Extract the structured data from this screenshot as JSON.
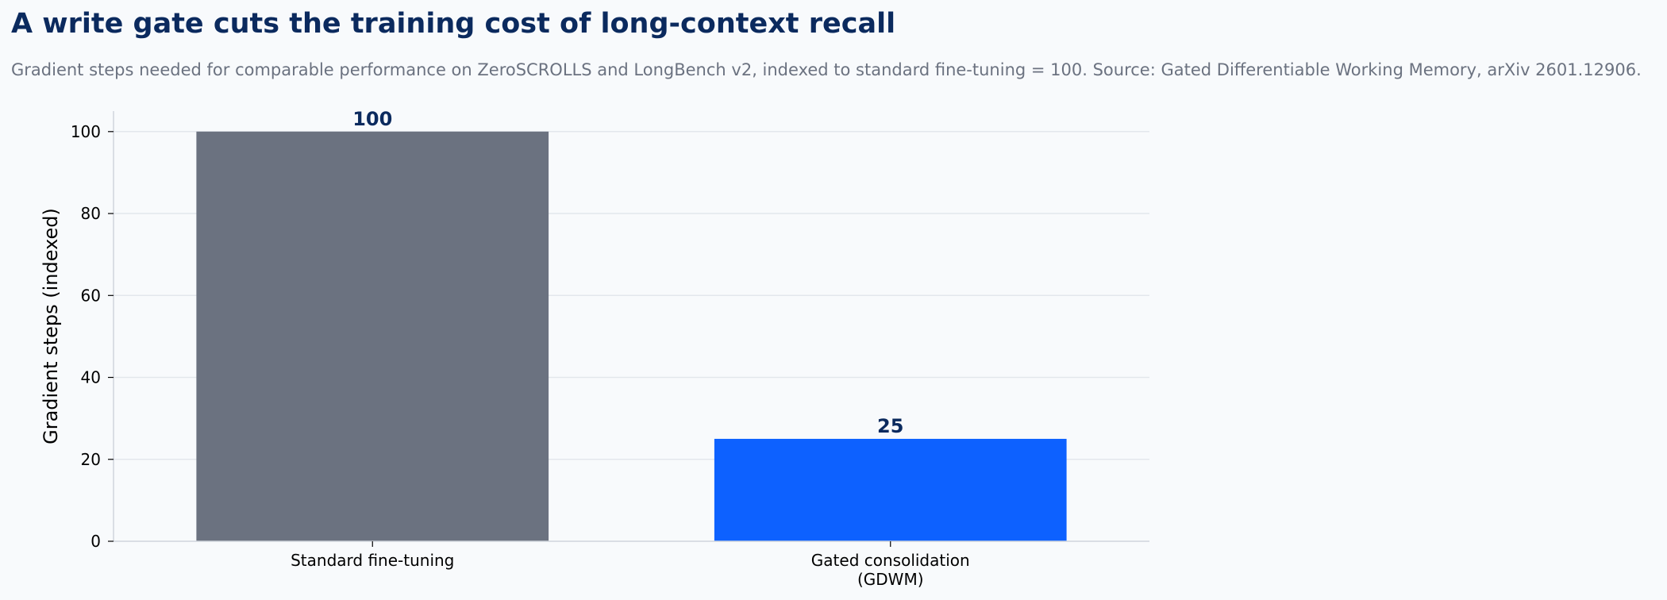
{
  "title": "A write gate cuts the training cost of long-context recall",
  "subtitle": "Gradient steps needed for comparable performance on ZeroSCROLLS and LongBench v2, indexed to standard fine-tuning = 100. Source: Gated Differentiable Working Memory, arXiv 2601.12906.",
  "colors": {
    "background": "#f8fafc",
    "title": "#0b2a5e",
    "subtitle": "#6b7280",
    "baseline_bar": "#6b7280",
    "highlight_bar": "#0d61ff",
    "grid": "#e3e7ec",
    "axis": "#cfd4db"
  },
  "chart_data": {
    "type": "bar",
    "categories": [
      [
        "Standard fine-tuning"
      ],
      [
        "Gated consolidation",
        "(GDWM)"
      ]
    ],
    "values": [
      100,
      25
    ],
    "value_labels": [
      "100",
      "25"
    ],
    "ylabel": "Gradient steps (indexed)",
    "xlabel": "",
    "ylim": [
      0,
      105
    ],
    "yticks": [
      0,
      20,
      40,
      60,
      80,
      100
    ],
    "grid": "horizontal",
    "legend": "none"
  }
}
